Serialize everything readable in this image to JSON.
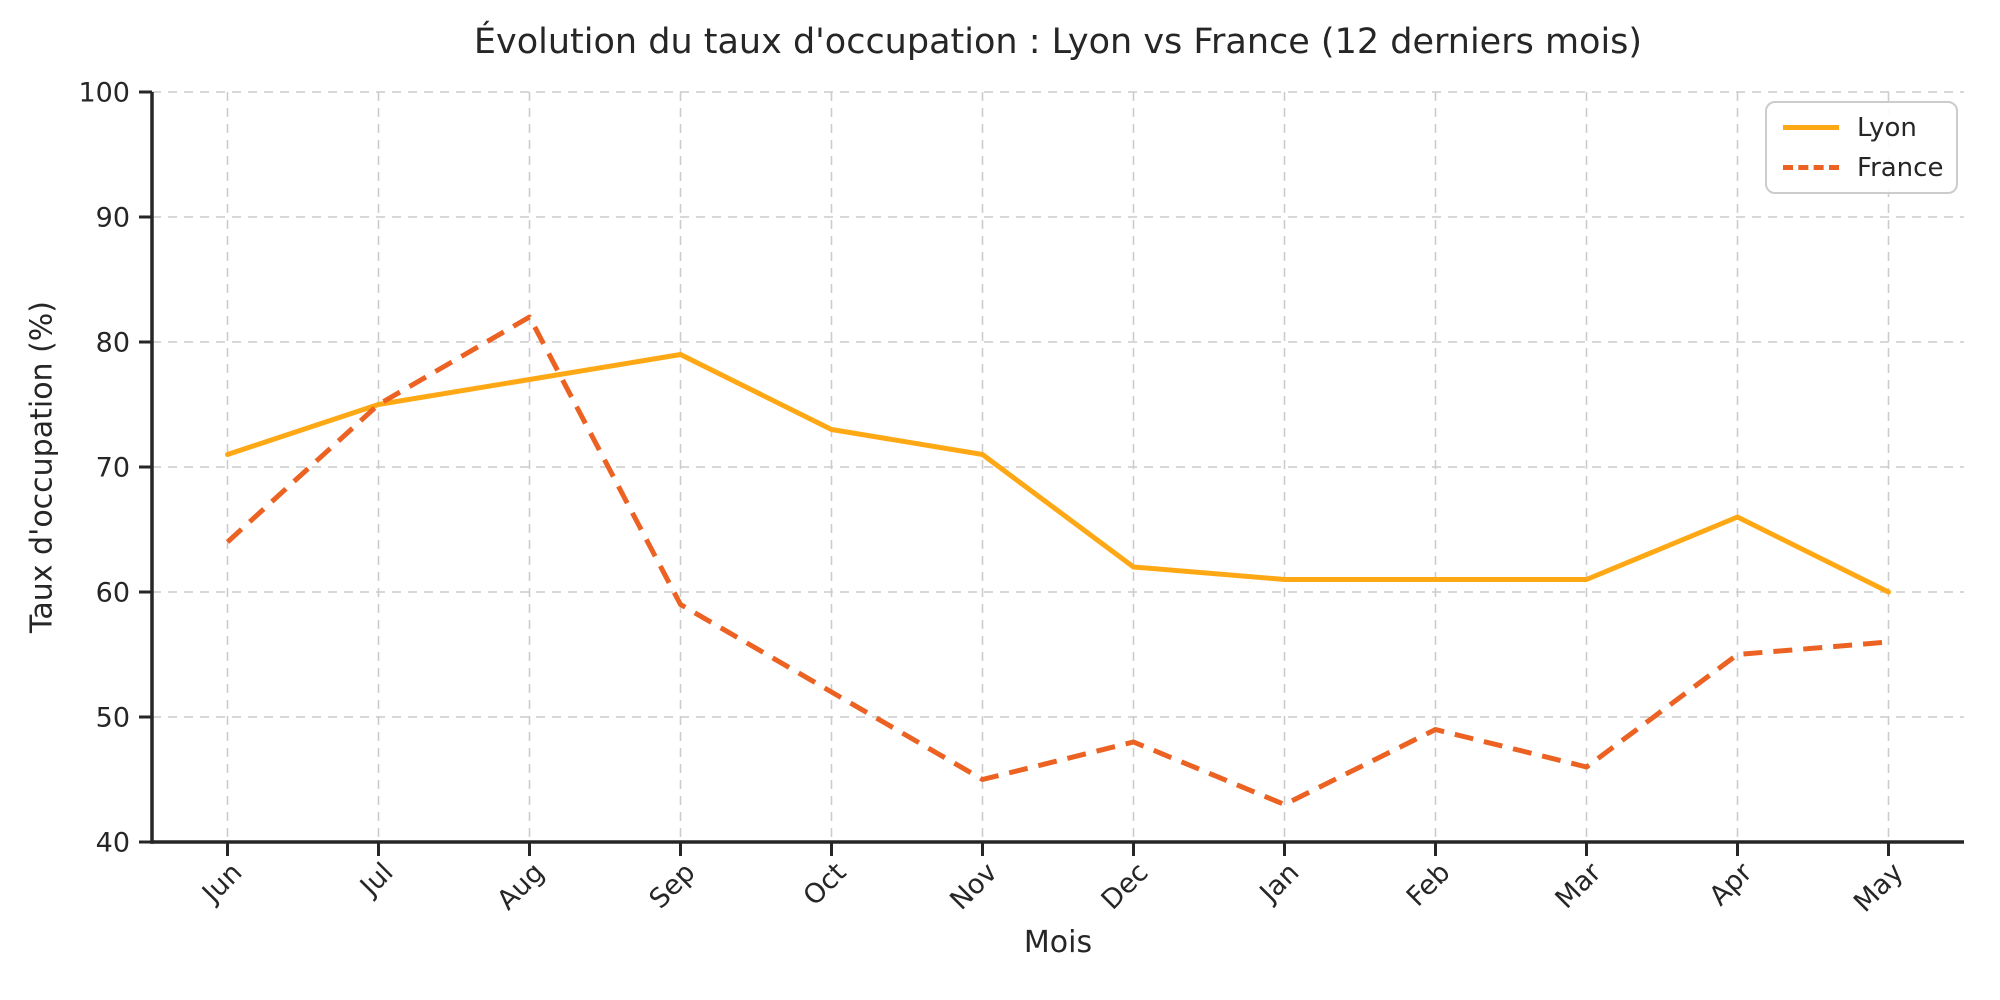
{
  "figure": {
    "title": "Évolution du taux d'occupation : Lyon vs France (12 derniers mois)",
    "xlabel": "Mois",
    "ylabel": "Taux d'occupation (%)"
  },
  "chart_data": {
    "type": "line",
    "title": "Évolution du taux d'occupation : Lyon vs France (12 derniers mois)",
    "xlabel": "Mois",
    "ylabel": "Taux d'occupation (%)",
    "categories": [
      "Jun",
      "Jul",
      "Aug",
      "Sep",
      "Oct",
      "Nov",
      "Dec",
      "Jan",
      "Feb",
      "Mar",
      "Apr",
      "May"
    ],
    "series": [
      {
        "name": "Lyon",
        "style": "solid",
        "color": "#FFA816",
        "values": [
          71,
          75,
          77,
          79,
          73,
          71,
          62,
          61,
          61,
          61,
          66,
          60
        ]
      },
      {
        "name": "France",
        "style": "dashed",
        "color": "#EB6223",
        "values": [
          64,
          75,
          82,
          59,
          52,
          45,
          48,
          43,
          49,
          46,
          55,
          56
        ]
      }
    ],
    "ylim": [
      40,
      100
    ],
    "yticks": [
      40,
      50,
      60,
      70,
      80,
      90,
      100
    ],
    "grid": true,
    "grid_style": "dashed",
    "legend_position": "upper right",
    "x_tick_rotation_deg": 45
  },
  "colors": {
    "text": "#262626",
    "spine": "#262626",
    "gridline": "#cccccc",
    "legend_border": "#cccccc",
    "background": "#ffffff"
  }
}
